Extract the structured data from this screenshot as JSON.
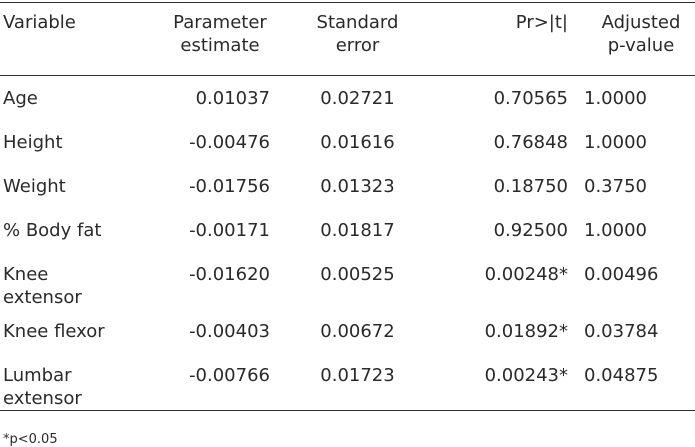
{
  "table": {
    "header": [
      "Variable",
      "Parameter estimate",
      "Standard error",
      "Pr>|t|",
      "Adjusted p-value"
    ],
    "rows": [
      [
        "Age",
        "0.01037",
        "0.02721",
        "0.70565",
        "1.0000"
      ],
      [
        "Height",
        "-0.00476",
        "0.01616",
        "0.76848",
        "1.0000"
      ],
      [
        "Weight",
        "-0.01756",
        "0.01323",
        "0.18750",
        "0.3750"
      ],
      [
        "% Body fat",
        "-0.00171",
        "0.01817",
        "0.92500",
        "1.0000"
      ],
      [
        "Knee extensor",
        "-0.01620",
        "0.00525",
        "0.00248*",
        "0.00496"
      ],
      [
        "Knee flexor",
        "-0.00403",
        "0.00672",
        "0.01892*",
        "0.03784"
      ],
      [
        "Lumbar extensor",
        "-0.00766",
        "0.01723",
        "0.00243*",
        "0.04875"
      ]
    ],
    "footnote": "*p<0.05"
  }
}
